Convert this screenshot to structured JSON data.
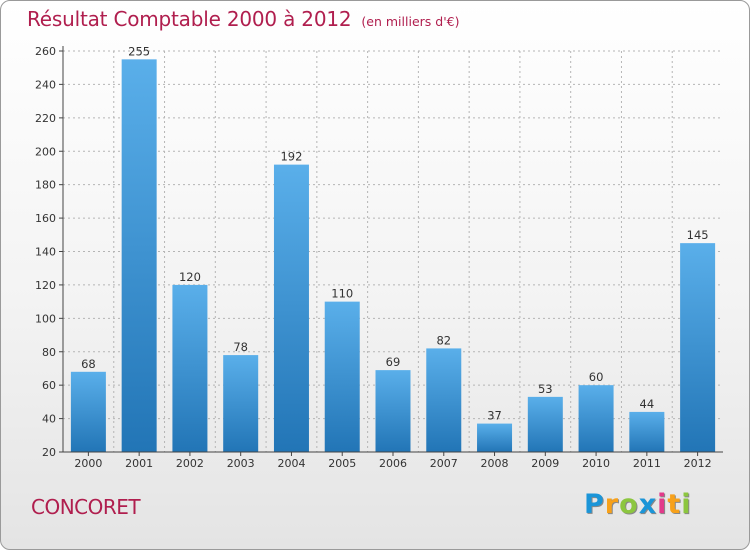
{
  "chart_data": {
    "type": "bar",
    "title": "Résultat Comptable 2000 à 2012",
    "subtitle": "(en milliers d'€)",
    "categories": [
      "2000",
      "2001",
      "2002",
      "2003",
      "2004",
      "2005",
      "2006",
      "2007",
      "2008",
      "2009",
      "2010",
      "2011",
      "2012"
    ],
    "values": [
      68,
      255,
      120,
      78,
      192,
      110,
      69,
      82,
      37,
      53,
      60,
      44,
      145
    ],
    "ylim": [
      20,
      260
    ],
    "yticks": [
      20,
      40,
      60,
      80,
      100,
      120,
      140,
      160,
      180,
      200,
      220,
      240,
      260
    ],
    "xlabel": "",
    "ylabel": "",
    "grid": true
  },
  "commune_name": "CONCORET",
  "logo": {
    "text": "Proxiti",
    "letters": [
      {
        "char": "P",
        "color": "#1b95d8"
      },
      {
        "char": "r",
        "color": "#f7a11a"
      },
      {
        "char": "o",
        "color": "#8cc63f"
      },
      {
        "char": "x",
        "color": "#1b95d8"
      },
      {
        "char": "i",
        "color": "#e23a8a"
      },
      {
        "char": "t",
        "color": "#f7a11a"
      },
      {
        "char": "i",
        "color": "#8cc63f"
      }
    ]
  },
  "colors": {
    "accent": "#b01e4e",
    "bar_light": "#5aafea",
    "bar_dark": "#2275b6",
    "grid": "#b5b5b5",
    "axis": "#444444",
    "text": "#333333"
  }
}
